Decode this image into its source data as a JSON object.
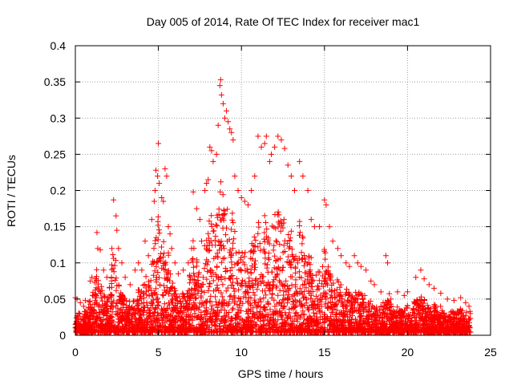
{
  "chart_data": {
    "type": "scatter",
    "title": "Day 005 of 2014, Rate Of TEC Index for receiver mac1",
    "xlabel": "GPS time / hours",
    "ylabel": "ROTI / TECUs",
    "xlim": [
      0,
      25
    ],
    "ylim": [
      0,
      0.4
    ],
    "xticks": [
      0,
      5,
      10,
      15,
      20,
      25
    ],
    "xtick_labels": [
      "0",
      "5",
      "10",
      "15",
      "20",
      "25"
    ],
    "yticks": [
      0,
      0.05,
      0.1,
      0.15,
      0.2,
      0.25,
      0.3,
      0.35,
      0.4
    ],
    "ytick_labels": [
      "0",
      "0.05",
      "0.1",
      "0.15",
      "0.2",
      "0.25",
      "0.3",
      "0.35",
      "0.4"
    ],
    "grid": true,
    "marker": "plus",
    "color": "#ff0000",
    "series": [
      {
        "name": "ROTI",
        "points": [
          [
            0.0,
            0.052
          ],
          [
            0.1,
            0.05
          ],
          [
            0.3,
            0.045
          ],
          [
            0.5,
            0.04
          ],
          [
            0.6,
            0.048
          ],
          [
            0.9,
            0.075
          ],
          [
            1.0,
            0.08
          ],
          [
            1.3,
            0.142
          ],
          [
            1.35,
            0.12
          ],
          [
            1.5,
            0.118
          ],
          [
            1.7,
            0.09
          ],
          [
            1.9,
            0.08
          ],
          [
            2.2,
            0.12
          ],
          [
            2.3,
            0.187
          ],
          [
            2.45,
            0.165
          ],
          [
            2.5,
            0.145
          ],
          [
            2.6,
            0.12
          ],
          [
            2.8,
            0.1
          ],
          [
            3.0,
            0.08
          ],
          [
            3.3,
            0.07
          ],
          [
            3.6,
            0.09
          ],
          [
            3.8,
            0.1
          ],
          [
            4.0,
            0.09
          ],
          [
            4.2,
            0.13
          ],
          [
            4.4,
            0.11
          ],
          [
            4.6,
            0.16
          ],
          [
            4.75,
            0.185
          ],
          [
            4.8,
            0.2
          ],
          [
            4.85,
            0.228
          ],
          [
            4.95,
            0.22
          ],
          [
            5.0,
            0.265
          ],
          [
            5.05,
            0.21
          ],
          [
            5.2,
            0.19
          ],
          [
            5.3,
            0.185
          ],
          [
            5.4,
            0.23
          ],
          [
            5.5,
            0.22
          ],
          [
            5.6,
            0.15
          ],
          [
            5.7,
            0.14
          ],
          [
            5.8,
            0.12
          ],
          [
            6.0,
            0.1
          ],
          [
            6.2,
            0.085
          ],
          [
            6.5,
            0.09
          ],
          [
            6.8,
            0.1
          ],
          [
            7.0,
            0.12
          ],
          [
            7.1,
            0.198
          ],
          [
            7.3,
            0.175
          ],
          [
            7.5,
            0.16
          ],
          [
            7.6,
            0.13
          ],
          [
            7.8,
            0.2
          ],
          [
            7.9,
            0.21
          ],
          [
            8.0,
            0.215
          ],
          [
            8.1,
            0.26
          ],
          [
            8.2,
            0.255
          ],
          [
            8.3,
            0.24
          ],
          [
            8.5,
            0.25
          ],
          [
            8.6,
            0.29
          ],
          [
            8.7,
            0.345
          ],
          [
            8.75,
            0.353
          ],
          [
            8.8,
            0.332
          ],
          [
            8.9,
            0.32
          ],
          [
            9.0,
            0.3
          ],
          [
            9.1,
            0.31
          ],
          [
            9.2,
            0.295
          ],
          [
            9.3,
            0.285
          ],
          [
            9.4,
            0.28
          ],
          [
            9.5,
            0.27
          ],
          [
            9.6,
            0.22
          ],
          [
            9.8,
            0.2
          ],
          [
            10.0,
            0.19
          ],
          [
            10.2,
            0.185
          ],
          [
            10.4,
            0.18
          ],
          [
            10.6,
            0.2
          ],
          [
            10.8,
            0.22
          ],
          [
            11.0,
            0.275
          ],
          [
            11.2,
            0.26
          ],
          [
            11.4,
            0.265
          ],
          [
            11.5,
            0.275
          ],
          [
            11.7,
            0.24
          ],
          [
            11.8,
            0.25
          ],
          [
            12.0,
            0.26
          ],
          [
            12.2,
            0.275
          ],
          [
            12.4,
            0.27
          ],
          [
            12.6,
            0.258
          ],
          [
            12.8,
            0.235
          ],
          [
            13.0,
            0.22
          ],
          [
            13.2,
            0.2
          ],
          [
            13.5,
            0.24
          ],
          [
            13.7,
            0.22
          ],
          [
            14.0,
            0.2
          ],
          [
            14.2,
            0.16
          ],
          [
            14.4,
            0.15
          ],
          [
            14.7,
            0.15
          ],
          [
            15.0,
            0.187
          ],
          [
            15.1,
            0.18
          ],
          [
            15.3,
            0.15
          ],
          [
            15.5,
            0.13
          ],
          [
            15.8,
            0.12
          ],
          [
            16.0,
            0.11
          ],
          [
            16.3,
            0.1
          ],
          [
            16.5,
            0.095
          ],
          [
            16.8,
            0.11
          ],
          [
            17.0,
            0.1
          ],
          [
            17.2,
            0.095
          ],
          [
            17.5,
            0.09
          ],
          [
            17.8,
            0.075
          ],
          [
            18.0,
            0.07
          ],
          [
            18.4,
            0.06
          ],
          [
            18.7,
            0.11
          ],
          [
            18.8,
            0.1
          ],
          [
            19.0,
            0.05
          ],
          [
            19.4,
            0.06
          ],
          [
            19.8,
            0.055
          ],
          [
            20.0,
            0.06
          ],
          [
            20.5,
            0.08
          ],
          [
            20.8,
            0.09
          ],
          [
            21.0,
            0.078
          ],
          [
            21.3,
            0.07
          ],
          [
            21.6,
            0.065
          ],
          [
            22.0,
            0.058
          ],
          [
            22.4,
            0.05
          ],
          [
            22.8,
            0.048
          ],
          [
            23.2,
            0.052
          ],
          [
            23.5,
            0.045
          ],
          [
            23.7,
            0.04
          ]
        ]
      }
    ]
  }
}
